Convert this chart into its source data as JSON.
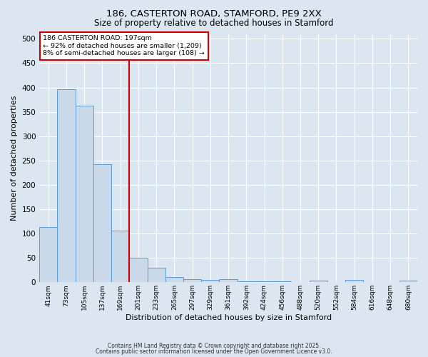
{
  "title1": "186, CASTERTON ROAD, STAMFORD, PE9 2XX",
  "title2": "Size of property relative to detached houses in Stamford",
  "xlabel": "Distribution of detached houses by size in Stamford",
  "ylabel": "Number of detached properties",
  "categories": [
    "41sqm",
    "73sqm",
    "105sqm",
    "137sqm",
    "169sqm",
    "201sqm",
    "233sqm",
    "265sqm",
    "297sqm",
    "329sqm",
    "361sqm",
    "392sqm",
    "424sqm",
    "456sqm",
    "488sqm",
    "520sqm",
    "552sqm",
    "584sqm",
    "616sqm",
    "648sqm",
    "680sqm"
  ],
  "bar_heights": [
    113,
    397,
    363,
    242,
    106,
    50,
    30,
    10,
    7,
    5,
    7,
    2,
    2,
    2,
    0,
    4,
    0,
    5,
    0,
    0,
    4
  ],
  "bar_color": "#c9d9ea",
  "bar_edge_color": "#5b9bd5",
  "red_line_color": "#cc0000",
  "annotation_line1": "186 CASTERTON ROAD: 197sqm",
  "annotation_line2": "← 92% of detached houses are smaller (1,209)",
  "annotation_line3": "8% of semi-detached houses are larger (108) →",
  "annotation_box_color": "#cc0000",
  "annotation_bg": "#ffffff",
  "ylim": [
    0,
    510
  ],
  "yticks": [
    0,
    50,
    100,
    150,
    200,
    250,
    300,
    350,
    400,
    450,
    500
  ],
  "background_color": "#dce6f0",
  "grid_color": "#ffffff",
  "footer1": "Contains HM Land Registry data © Crown copyright and database right 2025.",
  "footer2": "Contains public sector information licensed under the Open Government Licence v3.0."
}
